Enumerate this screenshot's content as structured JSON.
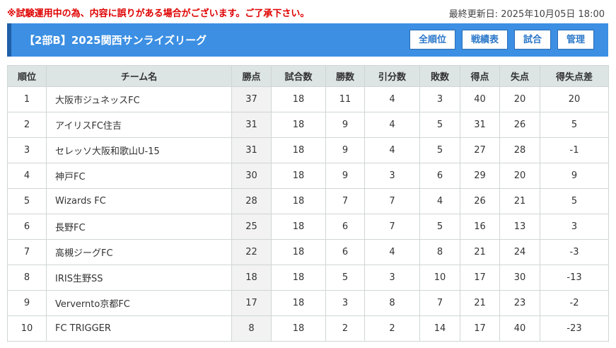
{
  "header": {
    "notice": "※試験運用中の為、内容に誤りがある場合がございます。ご了承下さい。",
    "updated": "最終更新日: 2025年10月05日 18:00"
  },
  "banner": {
    "title": "【2部B】2025関西サンライズリーグ",
    "buttons": [
      "全順位",
      "戦績表",
      "試合",
      "管理"
    ]
  },
  "table": {
    "columns": [
      "順位",
      "チーム名",
      "勝点",
      "試合数",
      "勝数",
      "引分数",
      "敗数",
      "得点",
      "失点",
      "得失点差"
    ],
    "rows": [
      [
        1,
        "大阪市ジュネッスFC",
        37,
        18,
        11,
        4,
        3,
        40,
        20,
        20
      ],
      [
        2,
        "アイリスFC住吉",
        31,
        18,
        9,
        4,
        5,
        31,
        26,
        5
      ],
      [
        3,
        "セレッソ大阪和歌山U-15",
        31,
        18,
        9,
        4,
        5,
        27,
        28,
        -1
      ],
      [
        4,
        "神戸FC",
        30,
        18,
        9,
        3,
        6,
        29,
        20,
        9
      ],
      [
        5,
        "Wizards FC",
        28,
        18,
        7,
        7,
        4,
        26,
        21,
        5
      ],
      [
        6,
        "長野FC",
        25,
        18,
        6,
        7,
        5,
        16,
        13,
        3
      ],
      [
        7,
        "高槻ジーグFC",
        22,
        18,
        6,
        4,
        8,
        21,
        24,
        -3
      ],
      [
        8,
        "IRIS生野SS",
        18,
        18,
        5,
        3,
        10,
        17,
        30,
        -13
      ],
      [
        9,
        "Ververnto京都FC",
        17,
        18,
        3,
        8,
        7,
        21,
        23,
        -2
      ],
      [
        10,
        "FC TRIGGER",
        8,
        18,
        2,
        2,
        14,
        17,
        40,
        -23
      ]
    ]
  }
}
